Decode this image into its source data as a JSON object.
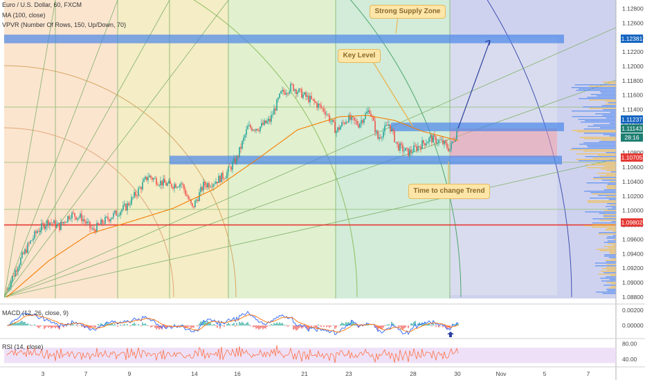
{
  "header": {
    "symbol_line": "Euro / U.S. Dollar, 60, FXCM",
    "ma_line": "MA (100, close)",
    "vpvr_line": "VPVR (Number Of Rows, 150, Up/Down, 70)",
    "macd_line": "MACD (12, 26, close, 9)",
    "rsi_line": "RSI (14, close)"
  },
  "annotations": {
    "supply_zone": "Strong Supply Zone",
    "key_level": "Key Level",
    "time_change": "Time to change Trend"
  },
  "price_tags": {
    "supply": "1.12381",
    "level_1": "1.11237",
    "level_2": "1.11143",
    "countdown": "28:16",
    "support": "1.10705",
    "red_line": "1.09802"
  },
  "colors": {
    "up": "#26a69a",
    "down": "#ef5350",
    "ma": "#f57c00",
    "zone": "#4a86e8",
    "red_line": "#e53935",
    "macd": "#2962ff",
    "signal": "#ff6d00",
    "rsi": "#ff7043"
  },
  "chart_data": [
    {
      "type": "candlestick",
      "title": "Euro / U.S. Dollar, 60, FXCM",
      "ylim": [
        1.0878,
        1.1292
      ],
      "y_ticks": [
        "1.12800",
        "1.12600",
        "1.12400",
        "1.12200",
        "1.12000",
        "1.11800",
        "1.11600",
        "1.11400",
        "1.11200",
        "1.11000",
        "1.10800",
        "1.10600",
        "1.10400",
        "1.10200",
        "1.10000",
        "1.09800",
        "1.09600",
        "1.09400",
        "1.09200",
        "1.09000",
        "1.08800"
      ],
      "x_ticks": [
        "3",
        "7",
        "9",
        "14",
        "16",
        "21",
        "23",
        "28",
        "30",
        "Nov",
        "5",
        "7"
      ],
      "trend_points": [
        {
          "i": 0,
          "p": 1.089
        },
        {
          "i": 8,
          "p": 1.0925
        },
        {
          "i": 15,
          "p": 1.095
        },
        {
          "i": 22,
          "p": 1.0972
        },
        {
          "i": 30,
          "p": 1.0985
        },
        {
          "i": 38,
          "p": 1.0978
        },
        {
          "i": 46,
          "p": 1.0995
        },
        {
          "i": 54,
          "p": 1.099
        },
        {
          "i": 62,
          "p": 1.0972
        },
        {
          "i": 70,
          "p": 1.0985
        },
        {
          "i": 78,
          "p": 1.0995
        },
        {
          "i": 86,
          "p": 1.1005
        },
        {
          "i": 94,
          "p": 1.1025
        },
        {
          "i": 102,
          "p": 1.1048
        },
        {
          "i": 110,
          "p": 1.104
        },
        {
          "i": 118,
          "p": 1.1035
        },
        {
          "i": 126,
          "p": 1.1038
        },
        {
          "i": 134,
          "p": 1.1003
        },
        {
          "i": 142,
          "p": 1.1035
        },
        {
          "i": 150,
          "p": 1.104
        },
        {
          "i": 158,
          "p": 1.105
        },
        {
          "i": 166,
          "p": 1.1072
        },
        {
          "i": 174,
          "p": 1.1115
        },
        {
          "i": 182,
          "p": 1.1115
        },
        {
          "i": 190,
          "p": 1.1125
        },
        {
          "i": 198,
          "p": 1.1162
        },
        {
          "i": 206,
          "p": 1.1172
        },
        {
          "i": 214,
          "p": 1.116
        },
        {
          "i": 222,
          "p": 1.115
        },
        {
          "i": 230,
          "p": 1.1138
        },
        {
          "i": 238,
          "p": 1.111
        },
        {
          "i": 246,
          "p": 1.1128
        },
        {
          "i": 254,
          "p": 1.112
        },
        {
          "i": 262,
          "p": 1.114
        },
        {
          "i": 268,
          "p": 1.11
        },
        {
          "i": 276,
          "p": 1.112
        },
        {
          "i": 282,
          "p": 1.109
        },
        {
          "i": 290,
          "p": 1.108
        },
        {
          "i": 298,
          "p": 1.109
        },
        {
          "i": 306,
          "p": 1.11
        },
        {
          "i": 314,
          "p": 1.1095
        },
        {
          "i": 320,
          "p": 1.1085
        },
        {
          "i": 326,
          "p": 1.1114
        }
      ],
      "ma_points": [
        {
          "i": 0,
          "p": 1.088
        },
        {
          "i": 30,
          "p": 1.093
        },
        {
          "i": 60,
          "p": 1.0968
        },
        {
          "i": 90,
          "p": 1.0985
        },
        {
          "i": 120,
          "p": 1.1003
        },
        {
          "i": 150,
          "p": 1.103
        },
        {
          "i": 180,
          "p": 1.107
        },
        {
          "i": 210,
          "p": 1.1112
        },
        {
          "i": 240,
          "p": 1.113
        },
        {
          "i": 260,
          "p": 1.1132
        },
        {
          "i": 280,
          "p": 1.1125
        },
        {
          "i": 300,
          "p": 1.111
        },
        {
          "i": 326,
          "p": 1.1097
        }
      ],
      "zones": [
        {
          "name": "Strong Supply Zone",
          "low": 1.1232,
          "high": 1.1244
        },
        {
          "name": "Key Level",
          "low": 1.111,
          "high": 1.1122
        },
        {
          "name": "Support",
          "low": 1.1064,
          "high": 1.1076
        }
      ],
      "horizontal_line": 1.098,
      "projection": {
        "from": 1.1114,
        "to": 1.1236
      }
    },
    {
      "type": "line",
      "title": "MACD (12, 26, close, 9)",
      "y_ticks": [
        "0.00200",
        "0.00000"
      ],
      "ylim": [
        -0.0016,
        0.0027
      ],
      "series": []
    },
    {
      "type": "line",
      "title": "RSI (14, close)",
      "y_ticks": [
        "80.00",
        "40.00"
      ],
      "ylim": [
        22,
        92
      ],
      "band": [
        30,
        70
      ],
      "series": []
    }
  ]
}
